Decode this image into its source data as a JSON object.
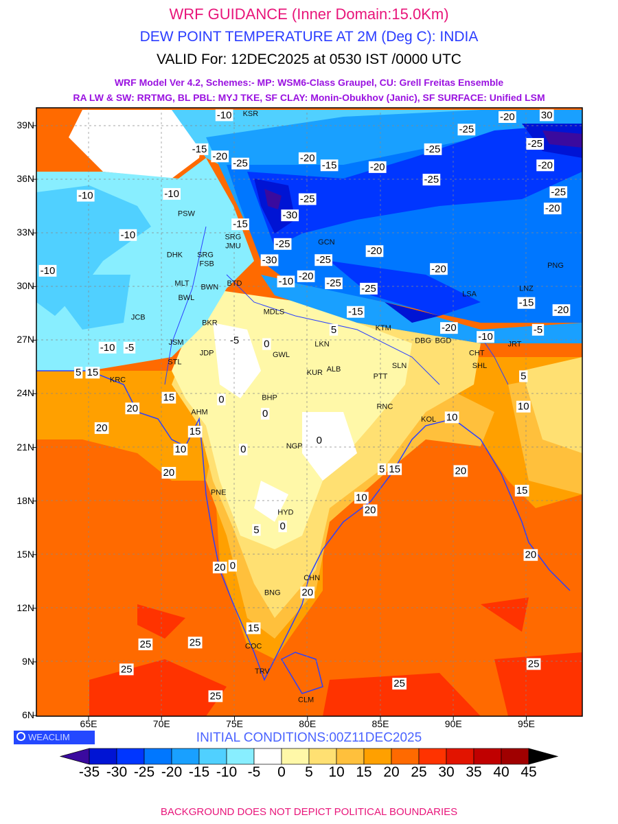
{
  "header": {
    "title": "WRF GUIDANCE (Inner Domain:15.0Km)",
    "subtitle": "DEW POINT TEMPERATURE AT 2M (Deg C): INDIA",
    "valid": "VALID For: 12DEC2025 at 0530 IST /0000 UTC",
    "schemes_line1": "WRF Model Ver 4.2, Schemes:- MP: WSM6-Class Graupel, CU: Grell Freitas Ensemble",
    "schemes_line2": "RA LW & SW: RRTMG, BL PBL: MYJ TKE, SF CLAY: Monin-Obukhov (Janic), SF SURFACE: Unified LSM"
  },
  "map": {
    "lat_labels": [
      "39N",
      "36N",
      "33N",
      "30N",
      "27N",
      "24N",
      "21N",
      "18N",
      "15N",
      "12N",
      "9N",
      "6N"
    ],
    "lon_labels": [
      "65E",
      "70E",
      "75E",
      "80E",
      "85E",
      "90E",
      "95E"
    ],
    "contour_labels": [
      {
        "text": "-10",
        "lon": 74.3,
        "lat": 39.6
      },
      {
        "text": "-15",
        "lon": 72.6,
        "lat": 37.7
      },
      {
        "text": "-20",
        "lon": 74.0,
        "lat": 37.3
      },
      {
        "text": "-25",
        "lon": 75.4,
        "lat": 36.9
      },
      {
        "text": "-20",
        "lon": 80.0,
        "lat": 37.2
      },
      {
        "text": "-15",
        "lon": 81.5,
        "lat": 36.8
      },
      {
        "text": "-20",
        "lon": 84.8,
        "lat": 36.7
      },
      {
        "text": "-25",
        "lon": 88.6,
        "lat": 37.7
      },
      {
        "text": "-25",
        "lon": 90.9,
        "lat": 38.8
      },
      {
        "text": "-20",
        "lon": 93.7,
        "lat": 39.5
      },
      {
        "text": "-25",
        "lon": 95.6,
        "lat": 38.0
      },
      {
        "text": "-20",
        "lon": 96.3,
        "lat": 36.8
      },
      {
        "text": "-25",
        "lon": 97.2,
        "lat": 35.3
      },
      {
        "text": "-20",
        "lon": 96.8,
        "lat": 35.0
      },
      {
        "text": "-25",
        "lon": 88.5,
        "lat": 36.0
      },
      {
        "text": "-10",
        "lon": 64.8,
        "lat": 35.1
      },
      {
        "text": "-10",
        "lon": 70.7,
        "lat": 35.2
      },
      {
        "text": "-15",
        "lon": 75.4,
        "lat": 33.5
      },
      {
        "text": "-10",
        "lon": 67.7,
        "lat": 32.9
      },
      {
        "text": "-10",
        "lon": 62.2,
        "lat": 30.9
      },
      {
        "text": "-30",
        "lon": 78.8,
        "lat": 34.0
      },
      {
        "text": "-25",
        "lon": 80.0,
        "lat": 34.6
      },
      {
        "text": "-25",
        "lon": 78.3,
        "lat": 32.4
      },
      {
        "text": "-30",
        "lon": 77.4,
        "lat": 31.8
      },
      {
        "text": "-25",
        "lon": 81.1,
        "lat": 31.5
      },
      {
        "text": "-20",
        "lon": 84.6,
        "lat": 32.0
      },
      {
        "text": "-20",
        "lon": 79.9,
        "lat": 30.9
      },
      {
        "text": "-10",
        "lon": 78.9,
        "lat": 30.3
      },
      {
        "text": "-25",
        "lon": 81.8,
        "lat": 30.2
      },
      {
        "text": "-25",
        "lon": 84.2,
        "lat": 29.9
      },
      {
        "text": "-20",
        "lon": 89.0,
        "lat": 31.0
      },
      {
        "text": "-15",
        "lon": 83.3,
        "lat": 28.6
      },
      {
        "text": "-20",
        "lon": 89.7,
        "lat": 27.7
      },
      {
        "text": "-10",
        "lon": 92.2,
        "lat": 27.2
      },
      {
        "text": "-15",
        "lon": 95.0,
        "lat": 29.1
      },
      {
        "text": "-20",
        "lon": 97.4,
        "lat": 28.7
      },
      {
        "text": "-5",
        "lon": 75.0,
        "lat": 27.0
      },
      {
        "text": "0",
        "lon": 77.2,
        "lat": 26.8
      },
      {
        "text": "-10",
        "lon": 66.3,
        "lat": 26.6
      },
      {
        "text": "-5",
        "lon": 67.8,
        "lat": 26.6
      },
      {
        "text": "5",
        "lon": 64.3,
        "lat": 25.2
      },
      {
        "text": "15",
        "lon": 64.9,
        "lat": 25.2
      },
      {
        "text": "15",
        "lon": 70.5,
        "lat": 23.8
      },
      {
        "text": "0",
        "lon": 74.1,
        "lat": 23.7
      },
      {
        "text": "0",
        "lon": 77.1,
        "lat": 22.9
      },
      {
        "text": "20",
        "lon": 68.0,
        "lat": 23.2
      },
      {
        "text": "20",
        "lon": 65.9,
        "lat": 22.1
      },
      {
        "text": "15",
        "lon": 72.3,
        "lat": 21.9
      },
      {
        "text": "10",
        "lon": 71.3,
        "lat": 20.9
      },
      {
        "text": "20",
        "lon": 70.5,
        "lat": 19.6
      },
      {
        "text": "0",
        "lon": 75.6,
        "lat": 20.9
      },
      {
        "text": "0",
        "lon": 80.8,
        "lat": 21.4
      },
      {
        "text": "5",
        "lon": 85.1,
        "lat": 19.8
      },
      {
        "text": "15",
        "lon": 85.6,
        "lat": 19.8
      },
      {
        "text": "10",
        "lon": 83.7,
        "lat": 18.2
      },
      {
        "text": "20",
        "lon": 84.3,
        "lat": 17.5
      },
      {
        "text": "5",
        "lon": 76.5,
        "lat": 16.4
      },
      {
        "text": "0",
        "lon": 78.3,
        "lat": 16.6
      },
      {
        "text": "20",
        "lon": 74.0,
        "lat": 14.3
      },
      {
        "text": "0",
        "lon": 74.5,
        "lat": 14.4
      },
      {
        "text": "20",
        "lon": 80.0,
        "lat": 12.9
      },
      {
        "text": "15",
        "lon": 76.3,
        "lat": 10.9
      },
      {
        "text": "10",
        "lon": 89.9,
        "lat": 22.7
      },
      {
        "text": "10",
        "lon": 94.8,
        "lat": 23.3
      },
      {
        "text": "5",
        "lon": 94.8,
        "lat": 25.0
      },
      {
        "text": "20",
        "lon": 90.5,
        "lat": 19.7
      },
      {
        "text": "15",
        "lon": 94.7,
        "lat": 18.6
      },
      {
        "text": "20",
        "lon": 95.3,
        "lat": 15.0
      },
      {
        "text": "25",
        "lon": 68.9,
        "lat": 10.0
      },
      {
        "text": "25",
        "lon": 72.3,
        "lat": 10.1
      },
      {
        "text": "25",
        "lon": 67.6,
        "lat": 8.6
      },
      {
        "text": "25",
        "lon": 73.7,
        "lat": 7.1
      },
      {
        "text": "25",
        "lon": 86.3,
        "lat": 7.8
      },
      {
        "text": "25",
        "lon": 95.5,
        "lat": 8.9
      },
      {
        "text": "5",
        "lon": 81.8,
        "lat": 27.6
      },
      {
        "text": "-5",
        "lon": 95.8,
        "lat": 27.6
      },
      {
        "text": "30",
        "lon": 96.4,
        "lat": 39.6
      }
    ],
    "city_labels": [
      {
        "text": "KSR",
        "lon": 76.1,
        "lat": 39.7
      },
      {
        "text": "PSW",
        "lon": 71.7,
        "lat": 34.1
      },
      {
        "text": "SRG",
        "lon": 74.9,
        "lat": 33.1
      },
      {
        "text": "JMU",
        "lon": 74.9,
        "lat": 32.6
      },
      {
        "text": "DHK",
        "lon": 70.9,
        "lat": 31.8
      },
      {
        "text": "FSB",
        "lon": 73.1,
        "lat": 31.3
      },
      {
        "text": "SRG",
        "lon": 73.0,
        "lat": 31.8
      },
      {
        "text": "MLT",
        "lon": 71.4,
        "lat": 30.2
      },
      {
        "text": "BWL",
        "lon": 71.7,
        "lat": 29.4
      },
      {
        "text": "BWN",
        "lon": 73.3,
        "lat": 30.0
      },
      {
        "text": "BTD",
        "lon": 75.0,
        "lat": 30.2
      },
      {
        "text": "JCB",
        "lon": 68.4,
        "lat": 28.3
      },
      {
        "text": "BKR",
        "lon": 73.3,
        "lat": 28.0
      },
      {
        "text": "JSM",
        "lon": 71.0,
        "lat": 26.9
      },
      {
        "text": "JDP",
        "lon": 73.1,
        "lat": 26.3
      },
      {
        "text": "STL",
        "lon": 70.9,
        "lat": 25.8
      },
      {
        "text": "MDLS",
        "lon": 77.7,
        "lat": 28.6
      },
      {
        "text": "LKN",
        "lon": 81.0,
        "lat": 26.8
      },
      {
        "text": "GWL",
        "lon": 78.2,
        "lat": 26.2
      },
      {
        "text": "ALB",
        "lon": 81.8,
        "lat": 25.4
      },
      {
        "text": "KUR",
        "lon": 80.5,
        "lat": 25.2
      },
      {
        "text": "PTT",
        "lon": 85.0,
        "lat": 25.0
      },
      {
        "text": "SLN",
        "lon": 86.3,
        "lat": 25.6
      },
      {
        "text": "KTM",
        "lon": 85.2,
        "lat": 27.7
      },
      {
        "text": "BGD",
        "lon": 89.3,
        "lat": 27.0
      },
      {
        "text": "DBG",
        "lon": 88.3,
        "lat": 27.0
      },
      {
        "text": "CHT",
        "lon": 91.6,
        "lat": 26.3
      },
      {
        "text": "SHL",
        "lon": 91.8,
        "lat": 25.6
      },
      {
        "text": "JRT",
        "lon": 94.2,
        "lat": 26.8
      },
      {
        "text": "LSA",
        "lon": 91.1,
        "lat": 29.6
      },
      {
        "text": "RNC",
        "lon": 85.3,
        "lat": 23.3
      },
      {
        "text": "KOL",
        "lon": 88.3,
        "lat": 22.6
      },
      {
        "text": "KRC",
        "lon": 67.0,
        "lat": 24.8
      },
      {
        "text": "AHM",
        "lon": 72.6,
        "lat": 23.0
      },
      {
        "text": "BHP",
        "lon": 77.4,
        "lat": 23.2
      },
      {
        "text": "NGP",
        "lon": 79.1,
        "lat": 21.1
      },
      {
        "text": "PNE",
        "lon": 73.9,
        "lat": 18.5
      },
      {
        "text": "HYD",
        "lon": 78.5,
        "lat": 17.4
      },
      {
        "text": "BNG",
        "lon": 77.6,
        "lat": 12.9
      },
      {
        "text": "CHN",
        "lon": 80.3,
        "lat": 13.1
      },
      {
        "text": "COC",
        "lon": 76.3,
        "lat": 9.9
      },
      {
        "text": "TRV",
        "lon": 76.9,
        "lat": 8.5
      },
      {
        "text": "CLM",
        "lon": 79.9,
        "lat": 6.9
      },
      {
        "text": "GCN",
        "lon": 81.3,
        "lat": 32.5
      },
      {
        "text": "PNG",
        "lon": 97.0,
        "lat": 31.2
      },
      {
        "text": "LNZ",
        "lon": 95.0,
        "lat": 29.6
      }
    ]
  },
  "colorbar": {
    "colors": [
      "#3a0a9e",
      "#0014d4",
      "#0036ff",
      "#0077ff",
      "#19a0ff",
      "#50d0ff",
      "#88eeff",
      "#ffffff",
      "#fff8a8",
      "#ffe072",
      "#ffc03c",
      "#ffa000",
      "#ff6a00",
      "#ff3300",
      "#e21400",
      "#c00000",
      "#a00000",
      "#000000"
    ],
    "labels": [
      "-35",
      "-30",
      "-25",
      "-20",
      "-15",
      "-10",
      "-5",
      "0",
      "5",
      "10",
      "15",
      "20",
      "25",
      "30",
      "35",
      "40",
      "45"
    ]
  },
  "footer": {
    "copyright": "WEACLIM",
    "initial_conditions": "INITIAL CONDITIONS:00Z11DEC2025",
    "disclaimer": "BACKGROUND DOES NOT DEPICT POLITICAL BOUNDARIES"
  }
}
